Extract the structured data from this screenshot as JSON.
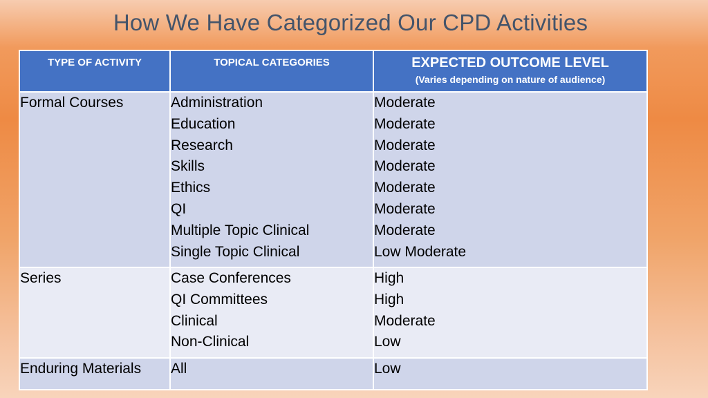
{
  "slide": {
    "title": "How We Have Categorized Our CPD Activities"
  },
  "table": {
    "headers": {
      "type": "TYPE OF ACTIVITY",
      "topical": "TOPICAL CATEGORIES",
      "outcome": "EXPECTED OUTCOME LEVEL",
      "outcome_note": "(Varies depending on nature of audience)"
    },
    "rows": [
      {
        "type": "Formal Courses",
        "topics": [
          "Administration",
          "Education",
          "Research",
          "Skills",
          "Ethics",
          "QI",
          "Multiple Topic Clinical",
          "Single Topic Clinical"
        ],
        "outcomes": [
          "Moderate",
          "Moderate",
          "Moderate",
          "Moderate",
          "Moderate",
          "Moderate",
          "Moderate",
          "Low Moderate"
        ]
      },
      {
        "type": "Series",
        "topics": [
          "Case Conferences",
          "QI Committees",
          "Clinical",
          "Non-Clinical"
        ],
        "outcomes": [
          "High",
          "High",
          "Moderate",
          "Low"
        ]
      },
      {
        "type": "Enduring Materials",
        "topics": [
          "All"
        ],
        "outcomes": [
          "Low"
        ]
      }
    ]
  }
}
